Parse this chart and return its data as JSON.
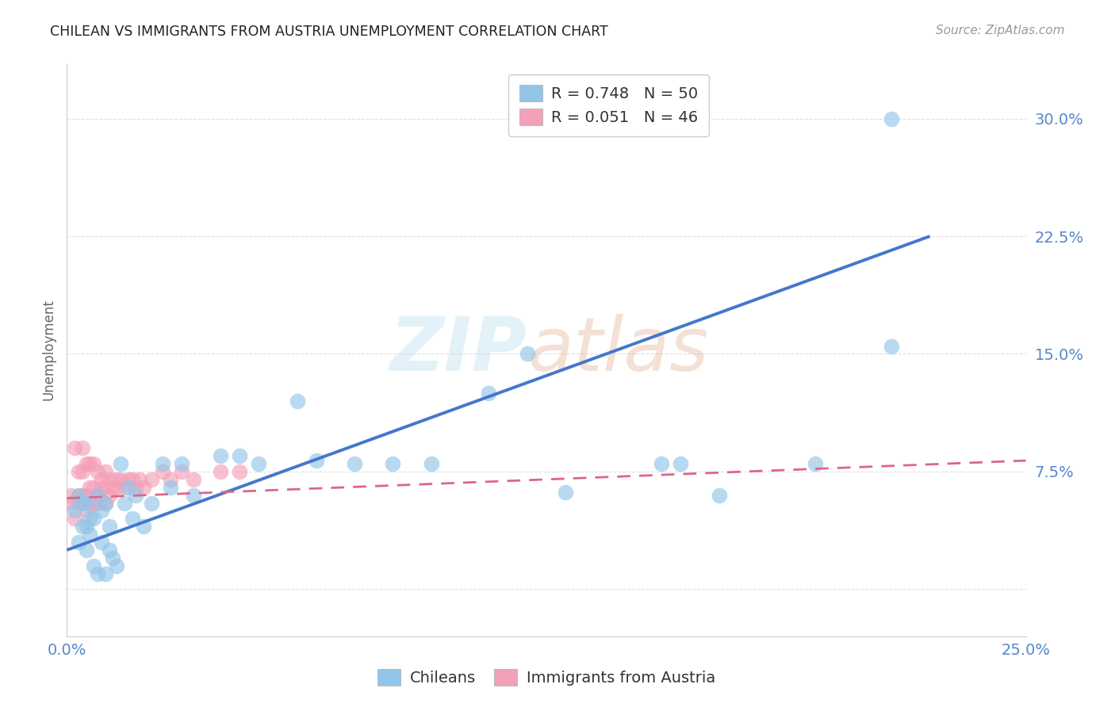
{
  "title": "CHILEAN VS IMMIGRANTS FROM AUSTRIA UNEMPLOYMENT CORRELATION CHART",
  "source": "Source: ZipAtlas.com",
  "ylabel": "Unemployment",
  "xlim": [
    0.0,
    0.25
  ],
  "ylim": [
    -0.03,
    0.335
  ],
  "xtick_vals": [
    0.0,
    0.05,
    0.1,
    0.15,
    0.2,
    0.25
  ],
  "ytick_vals": [
    0.0,
    0.075,
    0.15,
    0.225,
    0.3
  ],
  "xticklabels": [
    "0.0%",
    "",
    "",
    "",
    "",
    "25.0%"
  ],
  "yticklabels": [
    "",
    "7.5%",
    "15.0%",
    "22.5%",
    "30.0%"
  ],
  "chileans_R": 0.748,
  "chileans_N": 50,
  "austria_R": 0.051,
  "austria_N": 46,
  "blue_color": "#92C5E8",
  "pink_color": "#F4A0B8",
  "blue_line_color": "#4477CC",
  "pink_line_color": "#DD6688",
  "tick_color": "#5588CC",
  "grid_color": "#DDDDDD",
  "background_color": "#FFFFFF",
  "chileans_x": [
    0.002,
    0.003,
    0.003,
    0.004,
    0.004,
    0.005,
    0.005,
    0.005,
    0.006,
    0.006,
    0.007,
    0.007,
    0.008,
    0.008,
    0.009,
    0.009,
    0.01,
    0.01,
    0.011,
    0.011,
    0.012,
    0.013,
    0.014,
    0.015,
    0.016,
    0.017,
    0.018,
    0.02,
    0.022,
    0.025,
    0.027,
    0.03,
    0.033,
    0.04,
    0.045,
    0.05,
    0.06,
    0.065,
    0.075,
    0.085,
    0.095,
    0.11,
    0.12,
    0.13,
    0.155,
    0.16,
    0.17,
    0.195,
    0.215,
    0.215
  ],
  "chileans_y": [
    0.05,
    0.06,
    0.03,
    0.055,
    0.04,
    0.025,
    0.04,
    0.055,
    0.035,
    0.045,
    0.015,
    0.045,
    0.01,
    0.06,
    0.03,
    0.05,
    0.055,
    0.01,
    0.04,
    0.025,
    0.02,
    0.015,
    0.08,
    0.055,
    0.065,
    0.045,
    0.06,
    0.04,
    0.055,
    0.08,
    0.065,
    0.08,
    0.06,
    0.085,
    0.085,
    0.08,
    0.12,
    0.082,
    0.08,
    0.08,
    0.08,
    0.125,
    0.15,
    0.062,
    0.08,
    0.08,
    0.06,
    0.08,
    0.155,
    0.3
  ],
  "austria_x": [
    0.001,
    0.001,
    0.002,
    0.002,
    0.003,
    0.003,
    0.003,
    0.004,
    0.004,
    0.004,
    0.005,
    0.005,
    0.005,
    0.006,
    0.006,
    0.006,
    0.007,
    0.007,
    0.007,
    0.008,
    0.008,
    0.008,
    0.009,
    0.009,
    0.01,
    0.01,
    0.01,
    0.011,
    0.011,
    0.012,
    0.013,
    0.013,
    0.014,
    0.015,
    0.016,
    0.017,
    0.018,
    0.019,
    0.02,
    0.022,
    0.025,
    0.027,
    0.03,
    0.033,
    0.04,
    0.045
  ],
  "austria_y": [
    0.055,
    0.06,
    0.045,
    0.09,
    0.055,
    0.06,
    0.075,
    0.06,
    0.075,
    0.09,
    0.05,
    0.06,
    0.08,
    0.055,
    0.065,
    0.08,
    0.055,
    0.065,
    0.08,
    0.06,
    0.075,
    0.055,
    0.065,
    0.07,
    0.055,
    0.065,
    0.075,
    0.06,
    0.07,
    0.065,
    0.065,
    0.07,
    0.07,
    0.065,
    0.07,
    0.07,
    0.065,
    0.07,
    0.065,
    0.07,
    0.075,
    0.07,
    0.075,
    0.07,
    0.075,
    0.075
  ],
  "blue_line_x0": 0.0,
  "blue_line_y0": 0.025,
  "blue_line_x1": 0.225,
  "blue_line_y1": 0.225,
  "pink_line_x0": 0.0,
  "pink_line_y0": 0.058,
  "pink_line_x1": 0.25,
  "pink_line_y1": 0.082,
  "watermark_zip": "ZIP",
  "watermark_atlas": "atlas",
  "legend_label_chileans": "Chileans",
  "legend_label_austria": "Immigrants from Austria"
}
